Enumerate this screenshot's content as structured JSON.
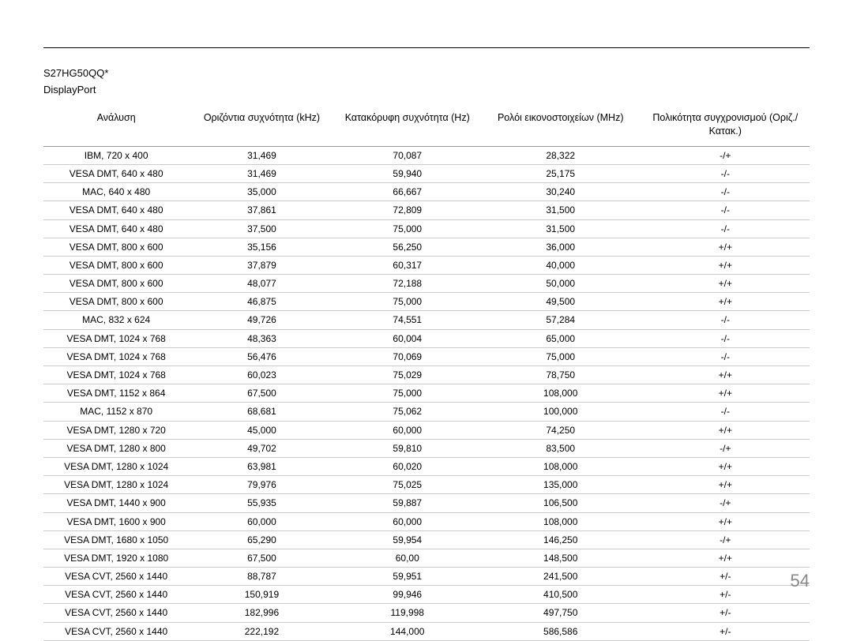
{
  "header": {
    "model": "S27HG50QQ*",
    "port": "DisplayPort"
  },
  "table": {
    "columns": [
      "Ανάλυση",
      "Οριζόντια συχνότητα (kHz)",
      "Κατακόρυφη συχνότητα (Hz)",
      "Ρολόι εικονοστοιχείων (MHz)",
      "Πολικότητα συγχρονισμού (Οριζ./Κατακ.)"
    ],
    "rows": [
      [
        "IBM, 720 x 400",
        "31,469",
        "70,087",
        "28,322",
        "-/+"
      ],
      [
        "VESA DMT, 640 x 480",
        "31,469",
        "59,940",
        "25,175",
        "-/-"
      ],
      [
        "MAC, 640 x 480",
        "35,000",
        "66,667",
        "30,240",
        "-/-"
      ],
      [
        "VESA DMT, 640 x 480",
        "37,861",
        "72,809",
        "31,500",
        "-/-"
      ],
      [
        "VESA DMT, 640 x 480",
        "37,500",
        "75,000",
        "31,500",
        "-/-"
      ],
      [
        "VESA DMT, 800 x 600",
        "35,156",
        "56,250",
        "36,000",
        "+/+"
      ],
      [
        "VESA DMT, 800 x 600",
        "37,879",
        "60,317",
        "40,000",
        "+/+"
      ],
      [
        "VESA DMT, 800 x 600",
        "48,077",
        "72,188",
        "50,000",
        "+/+"
      ],
      [
        "VESA DMT, 800 x 600",
        "46,875",
        "75,000",
        "49,500",
        "+/+"
      ],
      [
        "MAC, 832 x 624",
        "49,726",
        "74,551",
        "57,284",
        "-/-"
      ],
      [
        "VESA DMT, 1024 x 768",
        "48,363",
        "60,004",
        "65,000",
        "-/-"
      ],
      [
        "VESA DMT, 1024 x 768",
        "56,476",
        "70,069",
        "75,000",
        "-/-"
      ],
      [
        "VESA DMT, 1024 x 768",
        "60,023",
        "75,029",
        "78,750",
        "+/+"
      ],
      [
        "VESA DMT, 1152 x 864",
        "67,500",
        "75,000",
        "108,000",
        "+/+"
      ],
      [
        "MAC, 1152 x 870",
        "68,681",
        "75,062",
        "100,000",
        "-/-"
      ],
      [
        "VESA DMT, 1280 x 720",
        "45,000",
        "60,000",
        "74,250",
        "+/+"
      ],
      [
        "VESA DMT, 1280 x 800",
        "49,702",
        "59,810",
        "83,500",
        "-/+"
      ],
      [
        "VESA DMT, 1280 x 1024",
        "63,981",
        "60,020",
        "108,000",
        "+/+"
      ],
      [
        "VESA DMT, 1280 x 1024",
        "79,976",
        "75,025",
        "135,000",
        "+/+"
      ],
      [
        "VESA DMT, 1440 x 900",
        "55,935",
        "59,887",
        "106,500",
        "-/+"
      ],
      [
        "VESA DMT, 1600 x 900",
        "60,000",
        "60,000",
        "108,000",
        "+/+"
      ],
      [
        "VESA DMT, 1680 x 1050",
        "65,290",
        "59,954",
        "146,250",
        "-/+"
      ],
      [
        "VESA DMT, 1920 x 1080",
        "67,500",
        "60,00",
        "148,500",
        "+/+"
      ],
      [
        "VESA CVT, 2560 x 1440",
        "88,787",
        "59,951",
        "241,500",
        "+/-"
      ],
      [
        "VESA CVT, 2560 x 1440",
        "150,919",
        "99,946",
        "410,500",
        "+/-"
      ],
      [
        "VESA CVT, 2560 x 1440",
        "182,996",
        "119,998",
        "497,750",
        "+/-"
      ],
      [
        "VESA CVT, 2560 x 1440",
        "222,192",
        "144,000",
        "586,586",
        "+/-"
      ]
    ]
  },
  "page_number": "54"
}
